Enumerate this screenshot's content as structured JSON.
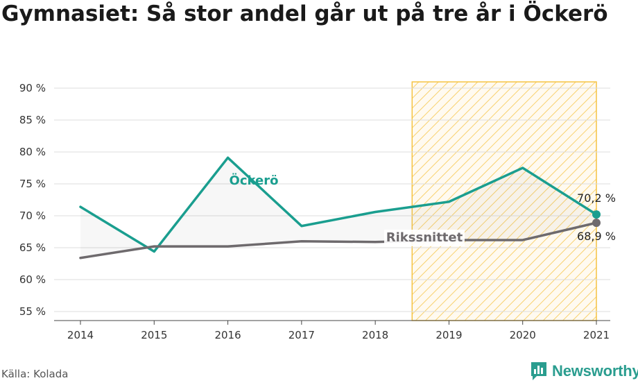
{
  "title": "Gymnasiet: Så stor andel går ut på tre år i Öckerö",
  "source": "Källa: Kolada",
  "brand": {
    "name": "Newsworthy",
    "logo_icon": "bar-chart-logo-icon",
    "color": "#2a9d8f"
  },
  "chart_data": {
    "type": "line",
    "x": [
      2014,
      2015,
      2016,
      2017,
      2018,
      2019,
      2020,
      2021
    ],
    "ylim": [
      55,
      90
    ],
    "yticks": [
      55,
      60,
      65,
      70,
      75,
      80,
      85,
      90
    ],
    "ytick_labels": [
      "55 %",
      "60 %",
      "65 %",
      "70 %",
      "75 %",
      "80 %",
      "85 %",
      "90 %"
    ],
    "grid": true,
    "highlight_range": [
      2018.5,
      2021
    ],
    "highlight_color": "#f5c342",
    "series": [
      {
        "name": "Öckerö",
        "color": "#1a9e8f",
        "values": [
          71.4,
          64.4,
          79.1,
          68.4,
          70.6,
          72.2,
          77.5,
          70.2
        ],
        "end_label": "70,2 %"
      },
      {
        "name": "Rikssnittet",
        "color": "#6e6a6d",
        "values": [
          63.4,
          65.2,
          65.2,
          66.0,
          65.9,
          66.2,
          66.2,
          68.9
        ],
        "end_label": "68,9 %"
      }
    ]
  }
}
